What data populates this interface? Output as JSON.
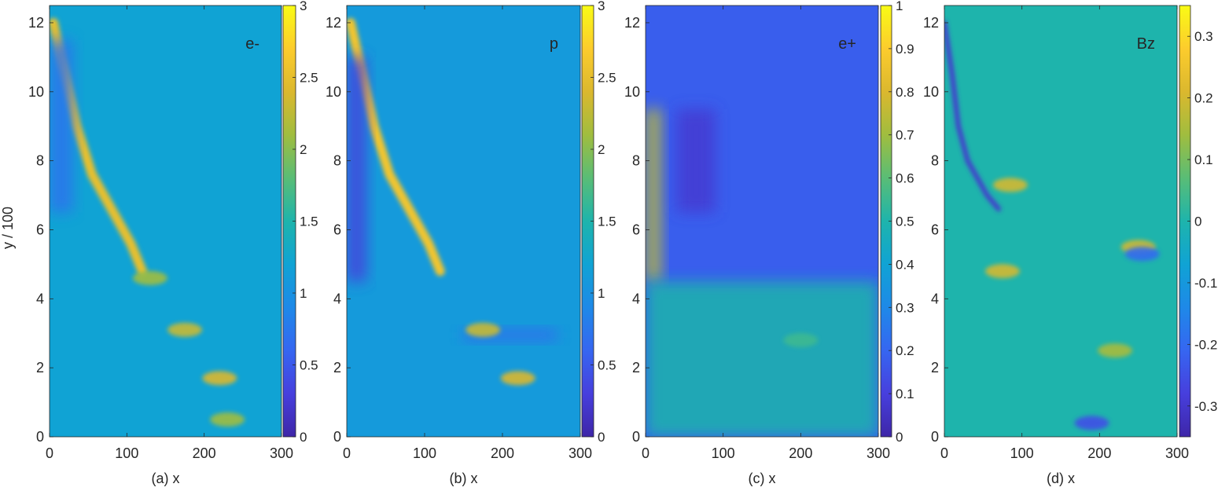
{
  "figure": {
    "ylabel": "y / 100"
  },
  "chart_data": [
    {
      "type": "heatmap",
      "label": "e-",
      "xlabel": "(a) x",
      "ylabel": "y / 100",
      "xlim": [
        0,
        300
      ],
      "ylim": [
        0,
        12.5
      ],
      "xticks": [
        0,
        100,
        200,
        300
      ],
      "yticks": [
        0,
        2,
        4,
        6,
        8,
        10,
        12
      ],
      "colorbar": {
        "clim": [
          0,
          3
        ],
        "ticks": [
          "0",
          "0.5",
          "1",
          "1.5",
          "2",
          "2.5",
          "3"
        ]
      },
      "colormap": "parula",
      "background_value": 1.2,
      "features": [
        {
          "kind": "shock-front",
          "description_value": 2.5,
          "points": [
            [
              5,
              12.0
            ],
            [
              20,
              10.5
            ],
            [
              35,
              9.0
            ],
            [
              55,
              7.6
            ],
            [
              80,
              6.6
            ],
            [
              105,
              5.6
            ],
            [
              120,
              4.8
            ]
          ]
        },
        {
          "kind": "low-pocket",
          "value": 0.7,
          "x": [
            0,
            30
          ],
          "y": [
            6.5,
            11.5
          ]
        },
        {
          "kind": "high-blob",
          "value": 2.3,
          "x": 175,
          "y": 3.1
        },
        {
          "kind": "high-blob",
          "value": 2.4,
          "x": 220,
          "y": 1.7
        },
        {
          "kind": "high-blob",
          "value": 2.1,
          "x": 130,
          "y": 4.6
        },
        {
          "kind": "high-blob",
          "value": 2.1,
          "x": 230,
          "y": 0.5
        }
      ]
    },
    {
      "type": "heatmap",
      "label": "p",
      "xlabel": "(b) x",
      "ylabel": "",
      "xlim": [
        0,
        300
      ],
      "ylim": [
        0,
        12.5
      ],
      "xticks": [
        0,
        100,
        200,
        300
      ],
      "yticks": [
        0,
        2,
        4,
        6,
        8,
        10,
        12
      ],
      "colorbar": {
        "clim": [
          0,
          3
        ],
        "ticks": [
          "0",
          "0.5",
          "1",
          "1.5",
          "2",
          "2.5",
          "3"
        ]
      },
      "colormap": "parula",
      "background_value": 1.1,
      "features": [
        {
          "kind": "shock-front",
          "description_value": 2.6,
          "points": [
            [
              5,
              12.0
            ],
            [
              20,
              10.5
            ],
            [
              35,
              9.0
            ],
            [
              55,
              7.6
            ],
            [
              80,
              6.6
            ],
            [
              105,
              5.6
            ],
            [
              120,
              4.8
            ]
          ]
        },
        {
          "kind": "low-pocket",
          "value": 0.3,
          "x": [
            0,
            25
          ],
          "y": [
            4.5,
            11.0
          ]
        },
        {
          "kind": "low-band",
          "value": 0.6,
          "x": [
            150,
            270
          ],
          "y": [
            2.8,
            3.1
          ]
        },
        {
          "kind": "high-blob",
          "value": 2.3,
          "x": 175,
          "y": 3.1
        },
        {
          "kind": "high-blob",
          "value": 2.4,
          "x": 220,
          "y": 1.7
        }
      ]
    },
    {
      "type": "heatmap",
      "label": "e+",
      "xlabel": "(c) x",
      "ylabel": "",
      "xlim": [
        0,
        300
      ],
      "ylim": [
        0,
        12.5
      ],
      "xticks": [
        0,
        100,
        200,
        300
      ],
      "yticks": [
        0,
        2,
        4,
        6,
        8,
        10,
        12
      ],
      "colorbar": {
        "clim": [
          0,
          1
        ],
        "ticks": [
          "0",
          "0.1",
          "0.2",
          "0.3",
          "0.4",
          "0.5",
          "0.6",
          "0.7",
          "0.8",
          "0.9",
          "1"
        ]
      },
      "colormap": "parula",
      "background_value": 0.18,
      "features": [
        {
          "kind": "left-band",
          "value": 0.75,
          "x": [
            0,
            20
          ],
          "y": [
            4.5,
            9.5
          ]
        },
        {
          "kind": "lower-region",
          "value": 0.5,
          "x": [
            0,
            300
          ],
          "y": [
            0,
            4.5
          ]
        },
        {
          "kind": "low-pocket",
          "value": 0.08,
          "x": [
            40,
            90
          ],
          "y": [
            6.5,
            9.5
          ]
        },
        {
          "kind": "high-blob",
          "value": 0.55,
          "x": 200,
          "y": 2.8
        }
      ]
    },
    {
      "type": "heatmap",
      "label": "Bz",
      "xlabel": "(d) x",
      "ylabel": "",
      "xlim": [
        0,
        300
      ],
      "ylim": [
        0,
        12.5
      ],
      "xticks": [
        0,
        100,
        200,
        300
      ],
      "yticks": [
        0,
        2,
        4,
        6,
        8,
        10,
        12
      ],
      "colorbar": {
        "clim": [
          -0.35,
          0.35
        ],
        "ticks": [
          "-0.3",
          "-0.2",
          "-0.1",
          "0",
          "0.1",
          "0.2",
          "0.3"
        ]
      },
      "colormap": "parula",
      "background_value": 0.0,
      "features": [
        {
          "kind": "negative-filament",
          "value": -0.3,
          "points": [
            [
              0,
              12.0
            ],
            [
              10,
              10.5
            ],
            [
              18,
              9.0
            ],
            [
              30,
              8.0
            ],
            [
              55,
              7.0
            ],
            [
              70,
              6.6
            ]
          ]
        },
        {
          "kind": "positive-blob",
          "value": 0.2,
          "x": 75,
          "y": 4.8
        },
        {
          "kind": "positive-blob",
          "value": 0.2,
          "x": 85,
          "y": 7.3
        },
        {
          "kind": "positive-blob",
          "value": 0.2,
          "x": 250,
          "y": 5.5
        },
        {
          "kind": "negative-blob",
          "value": -0.2,
          "x": 255,
          "y": 5.3
        },
        {
          "kind": "negative-blob",
          "value": -0.25,
          "x": 190,
          "y": 0.4
        },
        {
          "kind": "positive-blob",
          "value": 0.15,
          "x": 220,
          "y": 2.5
        }
      ]
    }
  ]
}
